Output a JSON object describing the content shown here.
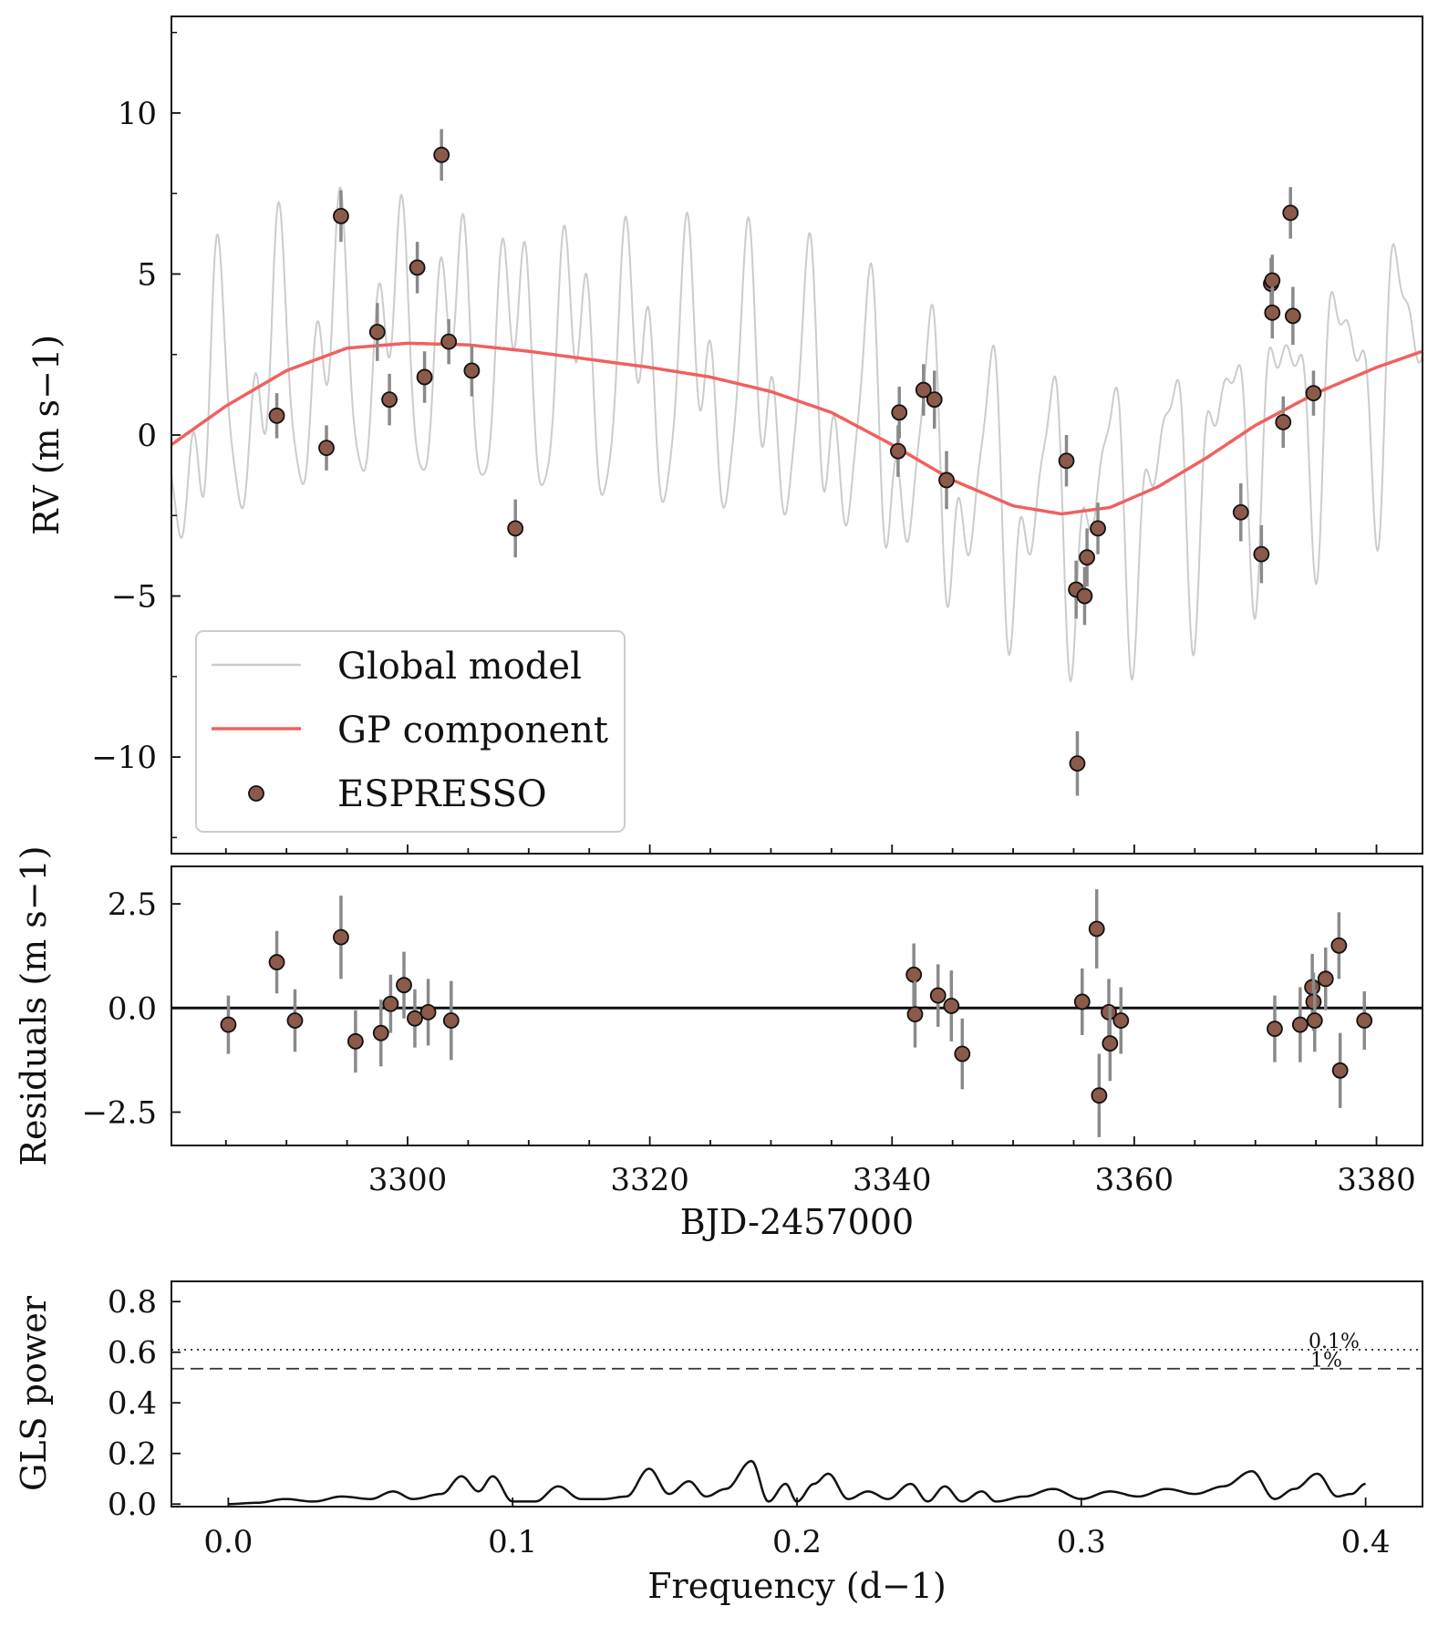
{
  "chart_data": [
    {
      "type": "scatter",
      "panel": "rv",
      "title": "",
      "xlabel": "",
      "ylabel": "RV (m s−1)",
      "xlim": [
        3280.5,
        3383.8
      ],
      "ylim": [
        -13.0,
        13.0
      ],
      "yticks": [
        10,
        5,
        0,
        -5,
        -10
      ],
      "ytick_labels": [
        "10",
        "5",
        "0",
        "−5",
        "−10"
      ],
      "legend": {
        "position": "lower-left",
        "entries": [
          {
            "label": "Global model",
            "color": "#cccccc",
            "kind": "line"
          },
          {
            "label": "GP component",
            "color": "#f06060",
            "kind": "line"
          },
          {
            "label": "ESPRESSO",
            "color": "#8b5a4a",
            "kind": "marker"
          }
        ]
      },
      "series": [
        {
          "name": "ESPRESSO",
          "color": "#8b5a4a",
          "x": [
            3289.2,
            3293.3,
            3294.5,
            3297.5,
            3298.5,
            3300.8,
            3301.4,
            3302.8,
            3303.4,
            3305.3,
            3308.9,
            3340.5,
            3340.6,
            3342.6,
            3343.5,
            3344.5,
            3354.4,
            3355.2,
            3355.3,
            3355.9,
            3356.1,
            3357.0,
            3368.8,
            3370.5,
            3371.3,
            3371.4,
            3371.4,
            3372.3,
            3372.9,
            3373.1,
            3374.8
          ],
          "y": [
            0.6,
            -0.4,
            6.8,
            3.2,
            1.1,
            5.2,
            1.8,
            8.7,
            2.9,
            2.0,
            -2.9,
            -0.5,
            0.7,
            1.4,
            1.1,
            -1.4,
            -0.8,
            -4.8,
            -10.2,
            -5.0,
            -3.8,
            -2.9,
            -2.4,
            -3.7,
            4.7,
            4.8,
            3.8,
            0.4,
            6.9,
            3.7,
            1.3
          ],
          "yerr": [
            0.7,
            0.7,
            0.8,
            0.9,
            0.8,
            0.8,
            0.8,
            0.8,
            0.7,
            0.8,
            0.9,
            0.8,
            0.8,
            0.8,
            0.9,
            0.9,
            0.8,
            0.9,
            1.0,
            0.9,
            0.9,
            0.8,
            0.9,
            0.9,
            0.8,
            0.8,
            0.8,
            0.8,
            0.8,
            0.9,
            0.7
          ]
        },
        {
          "name": "GP component",
          "color": "#f06060",
          "kind": "line",
          "x": [
            3280.5,
            3285,
            3290,
            3295,
            3300,
            3305,
            3310,
            3315,
            3320,
            3325,
            3330,
            3335,
            3340,
            3345,
            3350,
            3354,
            3358,
            3362,
            3366,
            3370,
            3375,
            3380,
            3383.8
          ],
          "y": [
            -0.3,
            0.9,
            2.0,
            2.7,
            2.85,
            2.8,
            2.6,
            2.35,
            2.1,
            1.8,
            1.35,
            0.7,
            -0.3,
            -1.4,
            -2.2,
            -2.45,
            -2.25,
            -1.6,
            -0.7,
            0.3,
            1.3,
            2.1,
            2.6
          ]
        },
        {
          "name": "Global model",
          "color": "#cccccc",
          "kind": "line",
          "components": [
            {
              "amplitude": 3.0,
              "period_days": 4.9
            },
            {
              "amplitude": 2.0,
              "period_days": 2.55
            },
            {
              "amplitude": 1.0,
              "period_days": 1.7
            }
          ]
        }
      ]
    },
    {
      "type": "scatter",
      "panel": "residuals",
      "xlabel": "BJD-2457000",
      "ylabel": "Residuals (m s−1)",
      "xlim": [
        3280.5,
        3383.8
      ],
      "ylim": [
        -3.3,
        3.4
      ],
      "xticks": [
        3300,
        3320,
        3340,
        3360,
        3380
      ],
      "xtick_labels": [
        "3300",
        "3320",
        "3340",
        "3360",
        "3380"
      ],
      "yticks": [
        2.5,
        0.0,
        -2.5
      ],
      "ytick_labels": [
        "2.5",
        "0.0",
        "−2.5"
      ],
      "series": [
        {
          "name": "Residuals",
          "color": "#8b5a4a",
          "x": [
            3285.2,
            3289.2,
            3290.7,
            3294.5,
            3295.7,
            3297.8,
            3298.6,
            3299.7,
            3300.6,
            3301.7,
            3303.6,
            3341.8,
            3341.9,
            3343.8,
            3344.9,
            3345.8,
            3355.7,
            3356.9,
            3357.1,
            3357.9,
            3358.0,
            3358.9,
            3371.6,
            3373.7,
            3374.7,
            3374.8,
            3374.9,
            3375.8,
            3376.9,
            3377.0,
            3379.0
          ],
          "y": [
            -0.4,
            1.1,
            -0.3,
            1.7,
            -0.8,
            -0.6,
            0.1,
            0.55,
            -0.25,
            -0.1,
            -0.3,
            0.8,
            -0.15,
            0.3,
            0.05,
            -1.1,
            0.15,
            1.9,
            -2.1,
            -0.1,
            -0.85,
            -0.3,
            -0.5,
            -0.4,
            0.5,
            0.15,
            -0.3,
            0.7,
            1.5,
            -1.5,
            -0.3
          ],
          "yerr": [
            0.7,
            0.75,
            0.75,
            1.0,
            0.75,
            0.8,
            0.7,
            0.8,
            0.7,
            0.8,
            0.95,
            0.75,
            0.8,
            0.75,
            0.85,
            0.85,
            0.8,
            0.95,
            1.0,
            0.8,
            0.9,
            0.8,
            0.8,
            0.9,
            0.8,
            0.7,
            0.75,
            0.75,
            0.8,
            0.9,
            0.7
          ]
        }
      ]
    },
    {
      "type": "line",
      "panel": "periodogram",
      "xlabel": "Frequency (d−1)",
      "ylabel": "GLS power",
      "xlim": [
        -0.02,
        0.42
      ],
      "ylim": [
        -0.01,
        0.88
      ],
      "xticks": [
        0.0,
        0.1,
        0.2,
        0.3,
        0.4
      ],
      "xtick_labels": [
        "0.0",
        "0.1",
        "0.2",
        "0.3",
        "0.4"
      ],
      "yticks": [
        0.0,
        0.2,
        0.4,
        0.6,
        0.8
      ],
      "ytick_labels": [
        "0.0",
        "0.2",
        "0.4",
        "0.6",
        "0.8"
      ],
      "thresholds": [
        {
          "label": "0.1%",
          "value": 0.61,
          "style": "dotted"
        },
        {
          "label": "1%",
          "value": 0.535,
          "style": "dashed"
        }
      ],
      "series": [
        {
          "name": "GLS",
          "color": "#111111",
          "x": [
            0.0,
            0.01,
            0.02,
            0.03,
            0.04,
            0.05,
            0.058,
            0.065,
            0.075,
            0.082,
            0.088,
            0.093,
            0.1,
            0.108,
            0.116,
            0.124,
            0.132,
            0.14,
            0.148,
            0.155,
            0.162,
            0.168,
            0.175,
            0.184,
            0.19,
            0.196,
            0.2,
            0.206,
            0.211,
            0.218,
            0.225,
            0.232,
            0.24,
            0.246,
            0.252,
            0.258,
            0.265,
            0.27,
            0.28,
            0.29,
            0.3,
            0.31,
            0.32,
            0.33,
            0.34,
            0.35,
            0.36,
            0.368,
            0.375,
            0.383,
            0.39,
            0.395,
            0.4
          ],
          "y": [
            0.0,
            0.005,
            0.02,
            0.01,
            0.03,
            0.02,
            0.05,
            0.02,
            0.04,
            0.11,
            0.05,
            0.11,
            0.01,
            0.01,
            0.07,
            0.02,
            0.02,
            0.03,
            0.14,
            0.04,
            0.09,
            0.03,
            0.06,
            0.17,
            0.01,
            0.08,
            0.01,
            0.08,
            0.12,
            0.02,
            0.05,
            0.02,
            0.08,
            0.01,
            0.07,
            0.01,
            0.05,
            0.01,
            0.03,
            0.06,
            0.02,
            0.05,
            0.03,
            0.06,
            0.04,
            0.07,
            0.13,
            0.02,
            0.06,
            0.12,
            0.03,
            0.04,
            0.08
          ]
        }
      ]
    }
  ]
}
